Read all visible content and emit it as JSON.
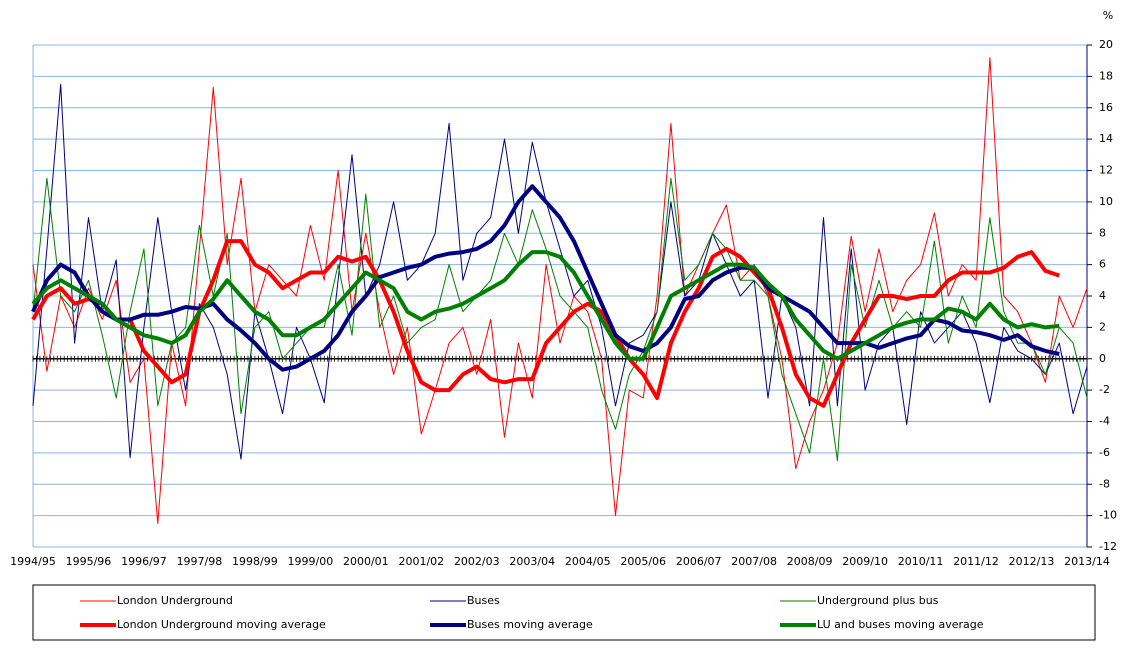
{
  "chart_data": {
    "type": "line",
    "y_unit": "%",
    "categories": [
      "1994/95",
      null,
      null,
      null,
      "1995/96",
      null,
      null,
      null,
      "1996/97",
      null,
      null,
      null,
      "1997/98",
      null,
      null,
      null,
      "1998/99",
      null,
      null,
      null,
      "1999/00",
      null,
      null,
      null,
      "2000/01",
      null,
      null,
      null,
      "2001/02",
      null,
      null,
      null,
      "2002/03",
      null,
      null,
      null,
      "2003/04",
      null,
      null,
      null,
      "2004/05",
      null,
      null,
      null,
      "2005/06",
      null,
      null,
      null,
      "2006/07",
      null,
      null,
      null,
      "2007/08",
      null,
      null,
      null,
      "2008/09",
      null,
      null,
      null,
      "2009/10",
      null,
      null,
      null,
      "2010/11",
      null,
      null,
      null,
      "2011/12",
      null,
      null,
      null,
      "2012/13",
      null,
      null,
      null,
      "2013/14"
    ],
    "ylim": [
      -12,
      20
    ],
    "yticks": [
      -12,
      -10,
      -8,
      -6,
      -4,
      -2,
      0,
      2,
      4,
      6,
      8,
      10,
      12,
      14,
      16,
      18,
      20
    ],
    "grid": true,
    "series": [
      {
        "name": "London Underground",
        "color": "#ff0000",
        "line_width": 1,
        "values": [
          6,
          -0.8,
          4,
          2,
          4.5,
          2.5,
          5,
          -1.5,
          0,
          -10.5,
          1,
          -3,
          7,
          17.3,
          6,
          11.5,
          3,
          6,
          5,
          4,
          8.5,
          5,
          12,
          3,
          8,
          3,
          -1,
          2,
          -4.8,
          -2,
          1,
          2,
          -1,
          2.5,
          -5,
          1,
          -2.5,
          6,
          1,
          4,
          3,
          0,
          -10,
          -2,
          -2.5,
          4,
          15,
          4,
          6,
          8,
          9.8,
          5,
          6,
          4,
          0,
          -7,
          -4,
          -2,
          1,
          7.8,
          3,
          7,
          3,
          5,
          6,
          9.3,
          4,
          6,
          5,
          19.2,
          4,
          3,
          1,
          -1.5,
          4,
          2,
          4.5
        ]
      },
      {
        "name": "Buses",
        "color": "#000080",
        "line_width": 1,
        "values": [
          -3,
          7,
          17.5,
          1,
          9,
          3,
          6.3,
          -6.3,
          2,
          9,
          3,
          -2,
          3.5,
          2,
          -1,
          -6.4,
          3,
          0,
          -3.5,
          2,
          0,
          -2.8,
          5,
          13,
          4,
          6,
          10,
          5,
          6,
          8,
          15,
          5,
          8,
          9,
          14,
          8,
          13.8,
          10,
          7,
          4,
          5,
          2,
          -3,
          1,
          1.5,
          3,
          10,
          4,
          5,
          8,
          6,
          4,
          5,
          -2.5,
          4,
          2,
          -3,
          9,
          -3,
          7,
          -2,
          1,
          2,
          -4.2,
          3,
          1,
          2,
          3,
          1,
          -2.8,
          2,
          0.5,
          0,
          -1,
          1,
          -3.5,
          -0.5
        ]
      },
      {
        "name": "Underground plus bus",
        "color": "#008000",
        "line_width": 1,
        "values": [
          3,
          11.5,
          4,
          3,
          5,
          1.5,
          -2.5,
          3,
          7,
          -3,
          1,
          2,
          8.5,
          4,
          8,
          -3.5,
          2,
          3,
          0,
          1,
          2,
          2,
          6,
          1.5,
          10.5,
          2,
          4,
          1,
          2,
          2.5,
          6,
          3,
          4,
          5,
          8,
          6,
          9.5,
          7,
          4,
          3,
          2,
          -2,
          -4.5,
          -1,
          0.5,
          3,
          11.5,
          5,
          6,
          8,
          7,
          5,
          5,
          4,
          -1,
          -3.5,
          -6,
          0,
          -6.5,
          6,
          2,
          5,
          2,
          3,
          2,
          7.5,
          1,
          4,
          2,
          9,
          3,
          1,
          1,
          -1,
          2,
          1,
          -2.5
        ]
      },
      {
        "name": "London Underground moving average",
        "color": "#ff0000",
        "line_width": 4,
        "values": [
          2.5,
          4,
          4.5,
          3.5,
          3.8,
          3.5,
          2.5,
          2.5,
          0.5,
          -0.5,
          -1.5,
          -1,
          3,
          5,
          7.5,
          7.5,
          6,
          5.5,
          4.5,
          5,
          5.5,
          5.5,
          6.5,
          6.2,
          6.5,
          5,
          3,
          0.5,
          -1.5,
          -2,
          -2,
          -1,
          -0.5,
          -1.3,
          -1.5,
          -1.3,
          -1.3,
          1,
          2,
          3,
          3.5,
          3,
          1.5,
          0,
          -1,
          -2.5,
          1,
          3,
          4.5,
          6.5,
          7,
          6.5,
          5.5,
          4.5,
          2,
          -1,
          -2.5,
          -3,
          -1,
          1,
          2.5,
          4,
          4,
          3.8,
          4,
          4,
          5,
          5.5,
          5.5,
          5.5,
          5.8,
          6.5,
          6.8,
          5.6,
          5.3,
          null,
          null
        ]
      },
      {
        "name": "Buses moving average",
        "color": "#000080",
        "line_width": 4,
        "values": [
          3,
          5,
          6,
          5.5,
          4,
          3,
          2.5,
          2.5,
          2.8,
          2.8,
          3,
          3.3,
          3.2,
          3.5,
          2.5,
          1.8,
          1,
          0,
          -0.7,
          -0.5,
          0,
          0.5,
          1.5,
          3,
          4,
          5.2,
          5.5,
          5.8,
          6,
          6.5,
          6.7,
          6.8,
          7,
          7.5,
          8.5,
          10,
          11,
          10,
          9,
          7.5,
          5.5,
          3.5,
          1.5,
          0.8,
          0.5,
          1,
          2,
          3.8,
          4,
          5,
          5.5,
          5.8,
          5.8,
          4.5,
          4,
          3.5,
          3,
          2,
          1,
          1,
          1,
          0.7,
          1,
          1.3,
          1.5,
          2.5,
          2.3,
          1.8,
          1.7,
          1.5,
          1.2,
          1.5,
          0.8,
          0.5,
          0.3,
          null,
          null
        ]
      },
      {
        "name": "LU and buses moving average",
        "color": "#008000",
        "line_width": 4,
        "values": [
          3.5,
          4.5,
          5,
          4.5,
          4,
          3.5,
          2.5,
          2,
          1.5,
          1.3,
          1,
          1.5,
          3,
          3.8,
          5,
          4,
          3,
          2.5,
          1.5,
          1.5,
          2,
          2.5,
          3.5,
          4.5,
          5.5,
          5,
          4.5,
          3,
          2.5,
          3,
          3.2,
          3.5,
          4,
          4.5,
          5,
          6,
          6.8,
          6.8,
          6.5,
          5.5,
          4,
          2.5,
          1,
          0,
          0,
          2,
          4,
          4.5,
          5,
          5.5,
          6,
          6,
          5.8,
          4.8,
          4,
          2.5,
          1.5,
          0.5,
          0,
          0.5,
          1,
          1.5,
          2,
          2.3,
          2.5,
          2.5,
          3.2,
          3,
          2.5,
          3.5,
          2.5,
          2,
          2.2,
          2,
          2.1,
          null,
          null
        ]
      }
    ]
  }
}
